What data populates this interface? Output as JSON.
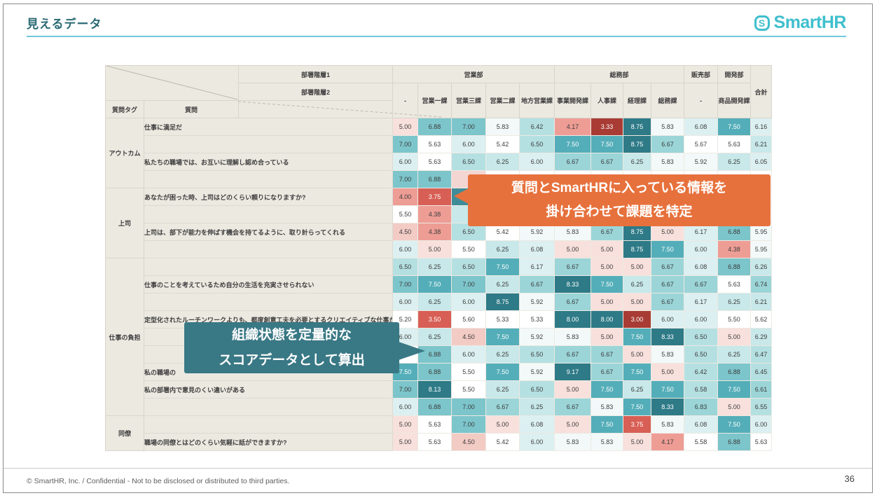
{
  "slide": {
    "title": "見えるデータ",
    "title_color": "#2a6a74",
    "underline_color": "#6fc9dc",
    "footer": "© SmartHR, Inc. / Confidential - Not to be disclosed or distributed to third parties.",
    "page_number": "36"
  },
  "logo": {
    "icon": "S",
    "text": "SmartHR",
    "color": "#3fbfcd"
  },
  "callouts": {
    "orange": {
      "line1": "質問とSmartHRに入っている情報を",
      "line2": "掛け合わせて課題を特定",
      "color": "#e7713c"
    },
    "teal": {
      "line1": "組織状態を定量的な",
      "line2": "スコアデータとして算出",
      "color": "#397885"
    }
  },
  "chart_data": {
    "type": "heatmap",
    "value_range": [
      1,
      10
    ],
    "corner_labels": {
      "hier1": "部署階層1",
      "hier2": "部署階層2",
      "tag": "質問タグ",
      "question": "質問",
      "total": "合計"
    },
    "column_groups": [
      {
        "label": "営業部",
        "span": 5
      },
      {
        "label": "総務部",
        "span": 4
      },
      {
        "label": "販売部",
        "span": 1
      },
      {
        "label": "開発部",
        "span": 1
      }
    ],
    "columns": [
      "-",
      "営業一課",
      "営業三課",
      "営業二課",
      "地方営業課",
      "事業開発課",
      "人事課",
      "経理課",
      "総務課",
      "-",
      "商品開発課"
    ],
    "sections": [
      {
        "tag": "アウトカム",
        "rows": [
          {
            "q": "仕事に満足だ",
            "values": [
              5.0,
              6.88,
              7.0,
              5.83,
              6.42,
              4.17,
              3.33,
              8.75,
              5.83,
              6.08,
              7.5,
              6.16
            ]
          },
          {
            "q": "",
            "values": [
              7.0,
              5.63,
              6.0,
              5.42,
              6.5,
              7.5,
              7.5,
              8.75,
              6.67,
              5.67,
              5.63,
              6.21
            ]
          },
          {
            "q": "私たちの職場では、お互いに理解し認め合っている",
            "values": [
              6.0,
              5.63,
              6.5,
              6.25,
              6.0,
              6.67,
              6.67,
              6.25,
              5.83,
              5.92,
              6.25,
              6.05
            ]
          },
          {
            "q": "",
            "values": [
              7.0,
              6.88,
              null,
              null,
              null,
              null,
              null,
              null,
              null,
              null,
              null,
              null
            ]
          }
        ]
      },
      {
        "tag": "上司",
        "rows": [
          {
            "q": "あなたが困った時、上司はどのくらい頼りになりますか?",
            "values": [
              4.0,
              3.75,
              null,
              null,
              null,
              null,
              null,
              null,
              null,
              null,
              null,
              null
            ]
          },
          {
            "q": "",
            "values": [
              5.5,
              4.38,
              null,
              null,
              null,
              null,
              null,
              null,
              null,
              null,
              null,
              null
            ]
          },
          {
            "q": "上司は、部下が能力を伸ばす機会を持てるように、取り計らってくれる",
            "values": [
              4.5,
              4.38,
              6.5,
              5.42,
              5.92,
              5.83,
              6.67,
              8.75,
              5.0,
              6.17,
              6.88,
              5.95
            ]
          },
          {
            "q": "",
            "values": [
              6.0,
              5.0,
              5.5,
              6.25,
              6.08,
              5.0,
              5.0,
              8.75,
              7.5,
              6.0,
              4.38,
              5.95
            ]
          }
        ]
      },
      {
        "tag": "仕事の負担",
        "rows": [
          {
            "q": "",
            "values": [
              6.5,
              6.25,
              6.5,
              7.5,
              6.17,
              6.67,
              5.0,
              5.0,
              6.67,
              6.08,
              6.88,
              6.26
            ]
          },
          {
            "q": "仕事のことを考えているため自分の生活を充実させられない",
            "values": [
              7.0,
              7.5,
              7.0,
              6.25,
              6.67,
              8.33,
              7.5,
              6.25,
              6.67,
              6.67,
              5.63,
              6.74
            ]
          },
          {
            "q": "",
            "values": [
              6.0,
              6.25,
              6.0,
              8.75,
              5.92,
              6.67,
              5.0,
              5.0,
              6.67,
              6.17,
              6.25,
              6.21
            ]
          },
          {
            "q": "定型化されたルーチンワークよりも、都度創意工夫を必要とするクリエイティブな仕事が多い",
            "values": [
              5.2,
              3.5,
              5.6,
              5.33,
              5.33,
              8.0,
              8.0,
              3.0,
              6.0,
              6.0,
              5.5,
              5.62
            ]
          },
          {
            "q": "",
            "values": [
              6.0,
              6.25,
              4.5,
              7.5,
              5.92,
              5.83,
              5.0,
              7.5,
              8.33,
              6.5,
              5.0,
              6.29
            ]
          },
          {
            "q": "",
            "values": [
              null,
              6.88,
              6.0,
              6.25,
              6.5,
              6.67,
              6.67,
              5.0,
              5.83,
              6.5,
              6.25,
              6.47
            ]
          },
          {
            "q": "私の職場の",
            "values": [
              7.5,
              6.88,
              5.5,
              7.5,
              5.92,
              9.17,
              6.67,
              7.5,
              5.0,
              6.42,
              6.88,
              6.45
            ]
          },
          {
            "q": "私の部署内で意見のくい違いがある",
            "values": [
              7.0,
              8.13,
              5.5,
              6.25,
              6.5,
              5.0,
              7.5,
              6.25,
              7.5,
              6.58,
              7.5,
              6.61
            ]
          },
          {
            "q": "",
            "values": [
              6.0,
              6.88,
              7.0,
              6.67,
              6.25,
              6.67,
              5.83,
              7.5,
              8.33,
              6.83,
              5.0,
              6.55
            ]
          }
        ]
      },
      {
        "tag": "同僚",
        "rows": [
          {
            "q": "",
            "values": [
              5.0,
              5.63,
              7.0,
              5.0,
              6.08,
              5.0,
              7.5,
              3.75,
              5.83,
              6.08,
              7.5,
              6.0
            ]
          },
          {
            "q": "職場の同僚とはどのくらい気軽に話ができますか?",
            "values": [
              5.0,
              5.63,
              4.5,
              5.42,
              6.0,
              5.83,
              5.83,
              5.0,
              4.17,
              5.58,
              6.88,
              5.63
            ]
          }
        ]
      }
    ],
    "covered_cells": [
      {
        "row": 3,
        "col": 2,
        "color": "#f3d6d2"
      },
      {
        "row": 4,
        "col": 2,
        "color": "#3f8c98"
      },
      {
        "row": 5,
        "col": 2,
        "color": "#c8e8ea"
      }
    ],
    "color_scale": [
      {
        "min": 7.95,
        "bg": "#2e7a87",
        "fg": "#ffffff"
      },
      {
        "min": 7.45,
        "bg": "#54aeb9",
        "fg": "#ffffff"
      },
      {
        "min": 6.85,
        "bg": "#7cc5cb",
        "fg": "#3d3d3d"
      },
      {
        "min": 6.6,
        "bg": "#9bd5d8",
        "fg": "#3d3d3d"
      },
      {
        "min": 6.38,
        "bg": "#b5e0e2",
        "fg": "#3d3d3d"
      },
      {
        "min": 6.2,
        "bg": "#c8e8ea",
        "fg": "#3d3d3d"
      },
      {
        "min": 5.98,
        "bg": "#dcf0f1",
        "fg": "#3d3d3d"
      },
      {
        "min": 5.75,
        "bg": "#f3f9f9",
        "fg": "#3d3d3d"
      },
      {
        "min": 5.15,
        "bg": "#ffffff",
        "fg": "#3d3d3d"
      },
      {
        "min": 4.9,
        "bg": "#f8e0dc",
        "fg": "#3d3d3d"
      },
      {
        "min": 4.45,
        "bg": "#f3cbc5",
        "fg": "#3d3d3d"
      },
      {
        "min": 3.95,
        "bg": "#ee9d95",
        "fg": "#3d3d3d"
      },
      {
        "min": 3.45,
        "bg": "#d85f55",
        "fg": "#ffffff"
      },
      {
        "min": 0,
        "bg": "#a83c34",
        "fg": "#ffffff"
      }
    ]
  }
}
